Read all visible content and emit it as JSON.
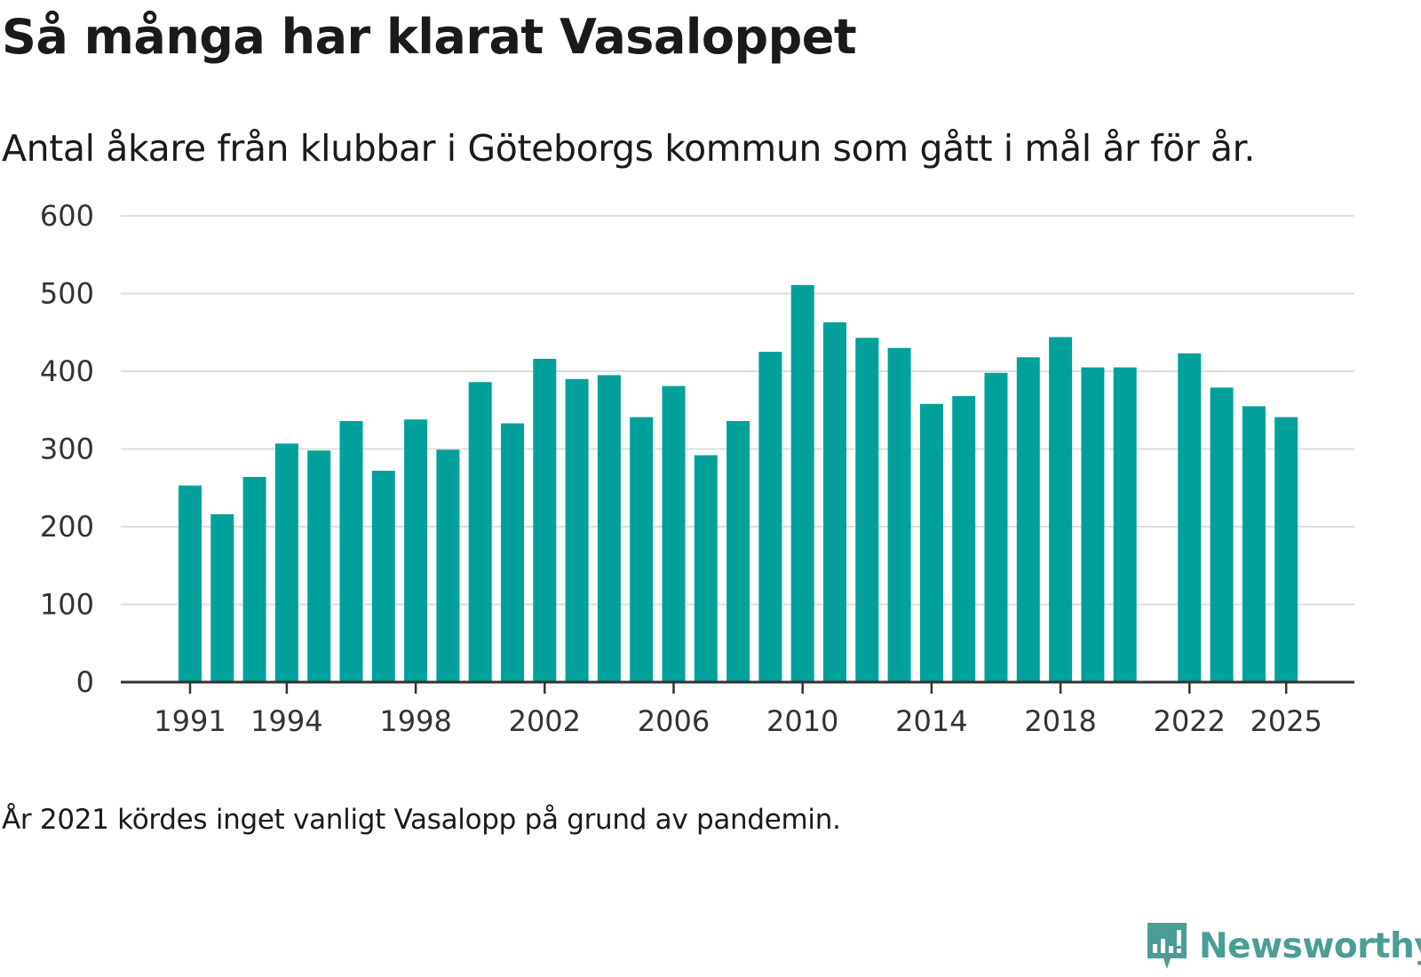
{
  "title": "Så många har klarat Vasaloppet",
  "subtitle": "Antal åkare från klubbar i Göteborgs kommun som gått i mål år för år.",
  "note": "År 2021 kördes inget vanligt Vasalopp på grund av pandemin.",
  "brand": {
    "name": "Newsworthy",
    "icon": "newsworthy-logo-icon",
    "color": "#4a9e96"
  },
  "colors": {
    "bar": "#00a19a",
    "grid": "#dddddd",
    "axis": "#333333"
  },
  "chart_data": {
    "type": "bar",
    "title": "Så många har klarat Vasaloppet",
    "xlabel": "",
    "ylabel": "",
    "ylim": [
      0,
      600
    ],
    "yticks": [
      0,
      100,
      200,
      300,
      400,
      500,
      600
    ],
    "xticks": [
      1991,
      1994,
      1998,
      2002,
      2006,
      2010,
      2014,
      2018,
      2022,
      2025
    ],
    "categories": [
      1991,
      1992,
      1993,
      1994,
      1995,
      1996,
      1997,
      1998,
      1999,
      2000,
      2001,
      2002,
      2003,
      2004,
      2005,
      2006,
      2007,
      2008,
      2009,
      2010,
      2011,
      2012,
      2013,
      2014,
      2015,
      2016,
      2017,
      2018,
      2019,
      2020,
      2021,
      2022,
      2023,
      2024,
      2025
    ],
    "values": [
      253,
      216,
      264,
      307,
      298,
      336,
      272,
      338,
      299,
      386,
      333,
      416,
      390,
      395,
      341,
      381,
      292,
      336,
      425,
      511,
      463,
      443,
      430,
      358,
      368,
      398,
      418,
      444,
      405,
      405,
      null,
      423,
      379,
      355,
      341
    ],
    "grid": true,
    "legend": "none"
  }
}
